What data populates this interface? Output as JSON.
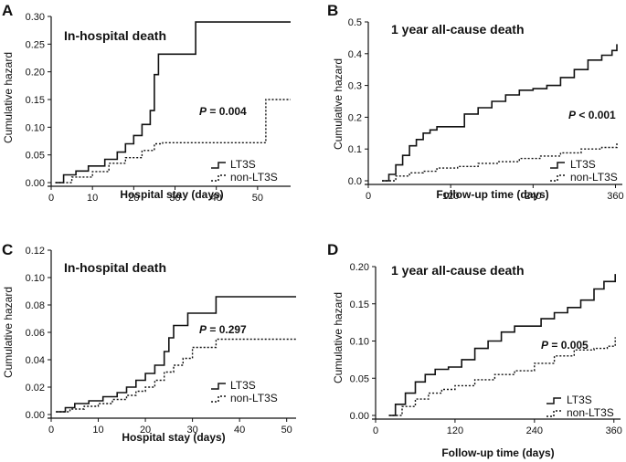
{
  "chart_data": [
    {
      "type": "line",
      "panel_letter": "A",
      "title": "In-hospital death",
      "xlabel": "Hospital stay (days)",
      "ylabel": "Cumulative hazard",
      "xlim": [
        0,
        58
      ],
      "ylim": [
        0,
        0.3
      ],
      "xticks": [
        0,
        10,
        20,
        30,
        40,
        50
      ],
      "xtick_labels": [
        "0",
        "10",
        "20",
        "30",
        "40",
        "50"
      ],
      "yticks": [
        0,
        0.05,
        0.1,
        0.15,
        0.2,
        0.25,
        0.3
      ],
      "ytick_labels": [
        "0.00",
        "0.05",
        "0.10",
        "0.15",
        "0.20",
        "0.25",
        "0.30"
      ],
      "p_label": "P",
      "p_value": "= 0.004",
      "legend": [
        "LT3S",
        "non-LT3S"
      ],
      "series": [
        {
          "name": "LT3S",
          "style": "solid",
          "x": [
            1,
            3,
            6,
            9,
            13,
            16,
            18,
            20,
            22,
            24,
            25,
            26,
            30,
            35,
            58
          ],
          "y": [
            0,
            0.014,
            0.021,
            0.03,
            0.042,
            0.055,
            0.07,
            0.085,
            0.105,
            0.13,
            0.195,
            0.232,
            0.232,
            0.29,
            0.29
          ]
        },
        {
          "name": "non-LT3S",
          "style": "dotted",
          "x": [
            1,
            5,
            10,
            14,
            18,
            22,
            25,
            27,
            35,
            45,
            52,
            58
          ],
          "y": [
            0,
            0.01,
            0.02,
            0.035,
            0.045,
            0.058,
            0.07,
            0.072,
            0.072,
            0.072,
            0.15,
            0.15
          ]
        }
      ]
    },
    {
      "type": "line",
      "panel_letter": "B",
      "title": "1 year all-cause death",
      "xlabel": "Follow-up time (days)",
      "ylabel": "Cumulative hazard",
      "xlim": [
        0,
        370
      ],
      "ylim": [
        0,
        0.5
      ],
      "xticks": [
        0,
        120,
        240,
        360
      ],
      "xtick_labels": [
        "0",
        "120",
        "240",
        "360"
      ],
      "yticks": [
        0,
        0.1,
        0.2,
        0.3,
        0.4,
        0.5
      ],
      "ytick_labels": [
        "0.0",
        "0.1",
        "0.2",
        "0.3",
        "0.4",
        "0.5"
      ],
      "p_label": "P",
      "p_value": "< 0.001",
      "legend": [
        "LT3S",
        "non-LT3S"
      ],
      "series": [
        {
          "name": "LT3S",
          "style": "solid",
          "x": [
            20,
            30,
            40,
            50,
            60,
            70,
            80,
            90,
            100,
            120,
            140,
            160,
            180,
            200,
            220,
            240,
            260,
            280,
            300,
            320,
            340,
            355,
            362
          ],
          "y": [
            0,
            0.02,
            0.05,
            0.08,
            0.11,
            0.13,
            0.15,
            0.16,
            0.17,
            0.17,
            0.21,
            0.23,
            0.25,
            0.27,
            0.285,
            0.29,
            0.3,
            0.325,
            0.35,
            0.38,
            0.395,
            0.41,
            0.43
          ]
        },
        {
          "name": "non-LT3S",
          "style": "dotted",
          "x": [
            20,
            40,
            60,
            80,
            100,
            130,
            160,
            190,
            220,
            250,
            280,
            310,
            340,
            362
          ],
          "y": [
            0,
            0.015,
            0.025,
            0.03,
            0.04,
            0.045,
            0.055,
            0.06,
            0.07,
            0.078,
            0.088,
            0.1,
            0.105,
            0.12
          ]
        }
      ]
    },
    {
      "type": "line",
      "panel_letter": "C",
      "title": "In-hospital death",
      "xlabel": "Hospital stay (days)",
      "ylabel": "Cumulative hazard",
      "xlim": [
        0,
        52
      ],
      "ylim": [
        0,
        0.12
      ],
      "xticks": [
        0,
        10,
        20,
        30,
        40,
        50
      ],
      "xtick_labels": [
        "0",
        "10",
        "20",
        "30",
        "40",
        "50"
      ],
      "yticks": [
        0,
        0.02,
        0.04,
        0.06,
        0.08,
        0.1,
        0.12
      ],
      "ytick_labels": [
        "0.00",
        "0.02",
        "0.04",
        "0.06",
        "0.08",
        "0.10",
        "0.12"
      ],
      "p_label": "P",
      "p_value": "= 0.297",
      "legend": [
        "LT3S",
        "non-LT3S"
      ],
      "series": [
        {
          "name": "LT3S",
          "style": "solid",
          "x": [
            1,
            3,
            5,
            8,
            11,
            14,
            16,
            18,
            20,
            22,
            24,
            25,
            26,
            27,
            29,
            31,
            35,
            52
          ],
          "y": [
            0.002,
            0.005,
            0.008,
            0.01,
            0.013,
            0.016,
            0.02,
            0.025,
            0.03,
            0.036,
            0.046,
            0.056,
            0.065,
            0.065,
            0.074,
            0.074,
            0.086,
            0.086
          ]
        },
        {
          "name": "non-LT3S",
          "style": "dotted",
          "x": [
            1,
            4,
            7,
            10,
            13,
            16,
            18,
            20,
            22,
            24,
            26,
            28,
            30,
            35,
            52
          ],
          "y": [
            0.002,
            0.004,
            0.006,
            0.008,
            0.011,
            0.014,
            0.017,
            0.02,
            0.025,
            0.031,
            0.036,
            0.041,
            0.049,
            0.055,
            0.055
          ]
        }
      ]
    },
    {
      "type": "line",
      "panel_letter": "D",
      "title": "1 year all-cause death",
      "xlabel": "Follow-up time (days)",
      "ylabel": "Cumulative hazard",
      "xlim": [
        0,
        370
      ],
      "ylim": [
        0,
        0.2
      ],
      "xticks": [
        0,
        120,
        240,
        360
      ],
      "xtick_labels": [
        "0",
        "120",
        "240",
        "360"
      ],
      "yticks": [
        0,
        0.05,
        0.1,
        0.15,
        0.2
      ],
      "ytick_labels": [
        "0.00",
        "0.05",
        "0.10",
        "0.15",
        "0.20"
      ],
      "p_label": "P",
      "p_value": "= 0.005",
      "legend": [
        "LT3S",
        "non-LT3S"
      ],
      "series": [
        {
          "name": "LT3S",
          "style": "solid",
          "x": [
            20,
            30,
            45,
            60,
            75,
            90,
            110,
            130,
            150,
            170,
            190,
            210,
            230,
            250,
            270,
            290,
            310,
            330,
            345,
            362
          ],
          "y": [
            0,
            0.015,
            0.03,
            0.045,
            0.055,
            0.062,
            0.065,
            0.075,
            0.09,
            0.1,
            0.112,
            0.12,
            0.12,
            0.13,
            0.138,
            0.145,
            0.155,
            0.17,
            0.18,
            0.19
          ]
        },
        {
          "name": "non-LT3S",
          "style": "dotted",
          "x": [
            20,
            40,
            60,
            80,
            100,
            120,
            150,
            180,
            210,
            240,
            270,
            300,
            330,
            350,
            362
          ],
          "y": [
            0,
            0.012,
            0.022,
            0.03,
            0.035,
            0.04,
            0.048,
            0.055,
            0.06,
            0.07,
            0.08,
            0.088,
            0.09,
            0.093,
            0.105
          ]
        }
      ]
    }
  ]
}
